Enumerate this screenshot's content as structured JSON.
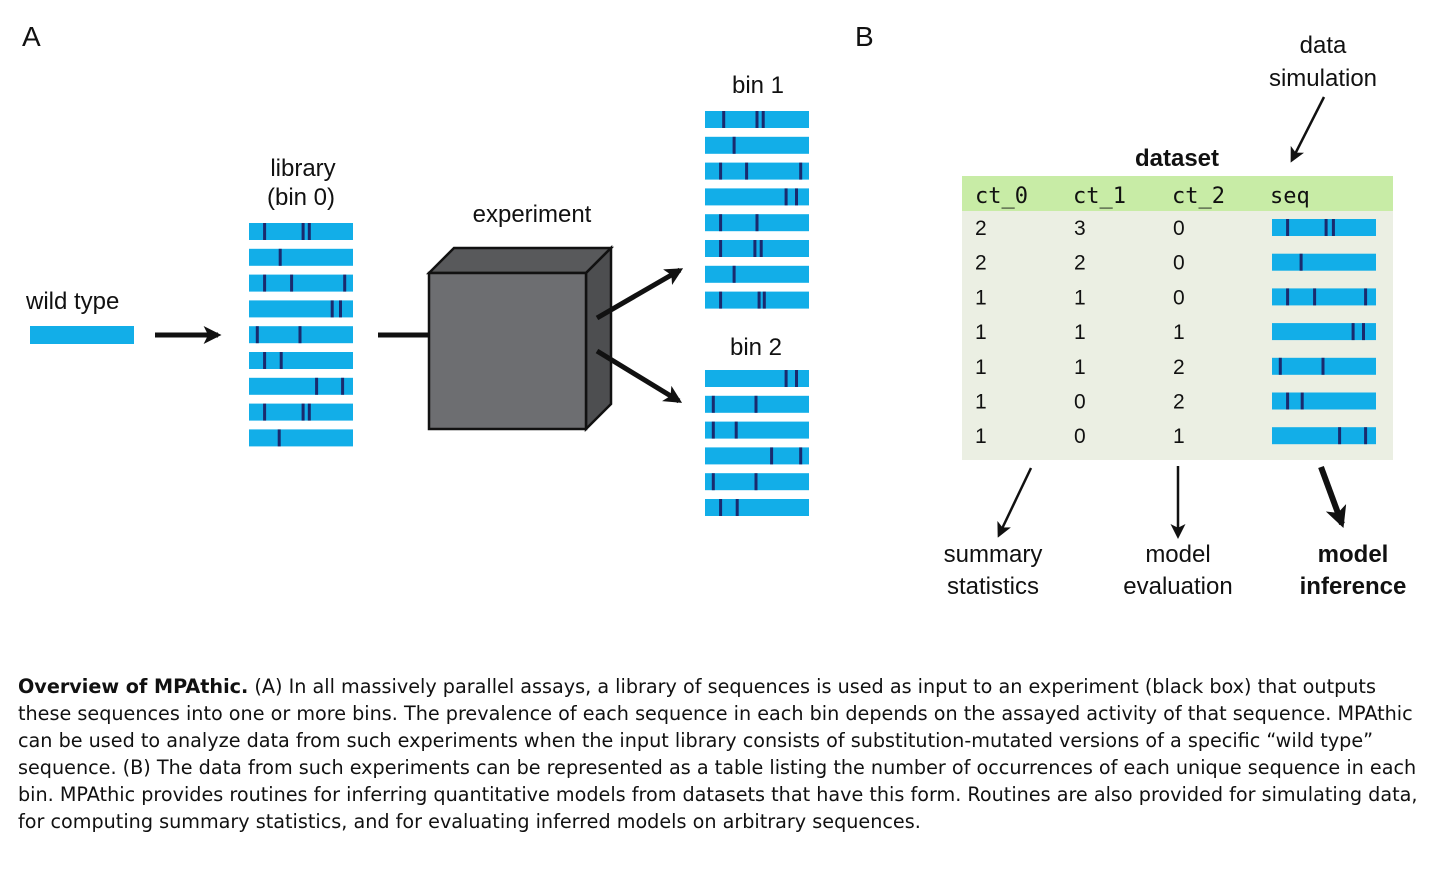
{
  "panel_a": {
    "label": "A",
    "wild_type_label": "wild type",
    "library_label_line1": "library",
    "library_label_line2": "(bin 0)",
    "experiment_label": "experiment",
    "bin1_label": "bin 1",
    "bin2_label": "bin 2",
    "library_mutations": [
      [
        0.15,
        0.52,
        0.58
      ],
      [
        0.3
      ],
      [
        0.15,
        0.41,
        0.92
      ],
      [
        0.8,
        0.88
      ],
      [
        0.08,
        0.49
      ],
      [
        0.15,
        0.31
      ],
      [
        0.65,
        0.9
      ],
      [
        0.15,
        0.52,
        0.58
      ],
      [
        0.29
      ]
    ],
    "bin1_mutations": [
      [
        0.18,
        0.5,
        0.56
      ],
      [
        0.28
      ],
      [
        0.15,
        0.4,
        0.92
      ],
      [
        0.78,
        0.88
      ],
      [
        0.15,
        0.5
      ],
      [
        0.15,
        0.48,
        0.54
      ],
      [
        0.28
      ],
      [
        0.15,
        0.52,
        0.57
      ]
    ],
    "bin2_mutations": [
      [
        0.78,
        0.88
      ],
      [
        0.08,
        0.49
      ],
      [
        0.08,
        0.3
      ],
      [
        0.64,
        0.92
      ],
      [
        0.08,
        0.49
      ],
      [
        0.15,
        0.31
      ]
    ]
  },
  "panel_b": {
    "label": "B",
    "dataset_title": "dataset",
    "columns": [
      "ct_0",
      "ct_1",
      "ct_2",
      "seq"
    ],
    "rows": [
      {
        "ct_0": "2",
        "ct_1": "3",
        "ct_2": "0",
        "mutations": [
          0.15,
          0.52,
          0.59
        ]
      },
      {
        "ct_0": "2",
        "ct_1": "2",
        "ct_2": "0",
        "mutations": [
          0.28
        ]
      },
      {
        "ct_0": "1",
        "ct_1": "1",
        "ct_2": "0",
        "mutations": [
          0.15,
          0.41,
          0.9
        ]
      },
      {
        "ct_0": "1",
        "ct_1": "1",
        "ct_2": "1",
        "mutations": [
          0.78,
          0.88
        ]
      },
      {
        "ct_0": "1",
        "ct_1": "1",
        "ct_2": "2",
        "mutations": [
          0.08,
          0.49
        ]
      },
      {
        "ct_0": "1",
        "ct_1": "0",
        "ct_2": "2",
        "mutations": [
          0.15,
          0.29
        ]
      },
      {
        "ct_0": "1",
        "ct_1": "0",
        "ct_2": "1",
        "mutations": [
          0.65,
          0.9
        ]
      }
    ],
    "data_simulation_line1": "data",
    "data_simulation_line2": "simulation",
    "summary_line1": "summary",
    "summary_line2": "statistics",
    "evaluation_line1": "model",
    "evaluation_line2": "evaluation",
    "inference_line1": "model",
    "inference_line2": "inference"
  },
  "caption": {
    "title": "Overview of MPAthic.",
    "text": " (A) In all massively parallel assays, a library of sequences is used as input to an experiment (black box) that outputs these sequences into one or more bins. The prevalence of each sequence in each bin depends on the assayed activity of that sequence. MPAthic can be used to analyze data from such experiments when the input library consists of substitution-mutated versions of a specific “wild type” sequence. (B) The data from such experiments can be represented as a table listing the number of occurrences of each unique sequence in each bin. MPAthic provides routines for inferring quantitative models from datasets that have this form. Routines are also provided for simulating data, for computing summary statistics, and for evaluating inferred models on arbitrary sequences."
  },
  "colors": {
    "sequence_bar": "#12aee8",
    "mutation_mark": "#1a2a6e",
    "table_header_bg": "#c8eca6",
    "table_body_bg": "#ebefe3",
    "box_front": "#6d6e71",
    "box_top": "#58595b",
    "box_side": "#4d4e50"
  }
}
